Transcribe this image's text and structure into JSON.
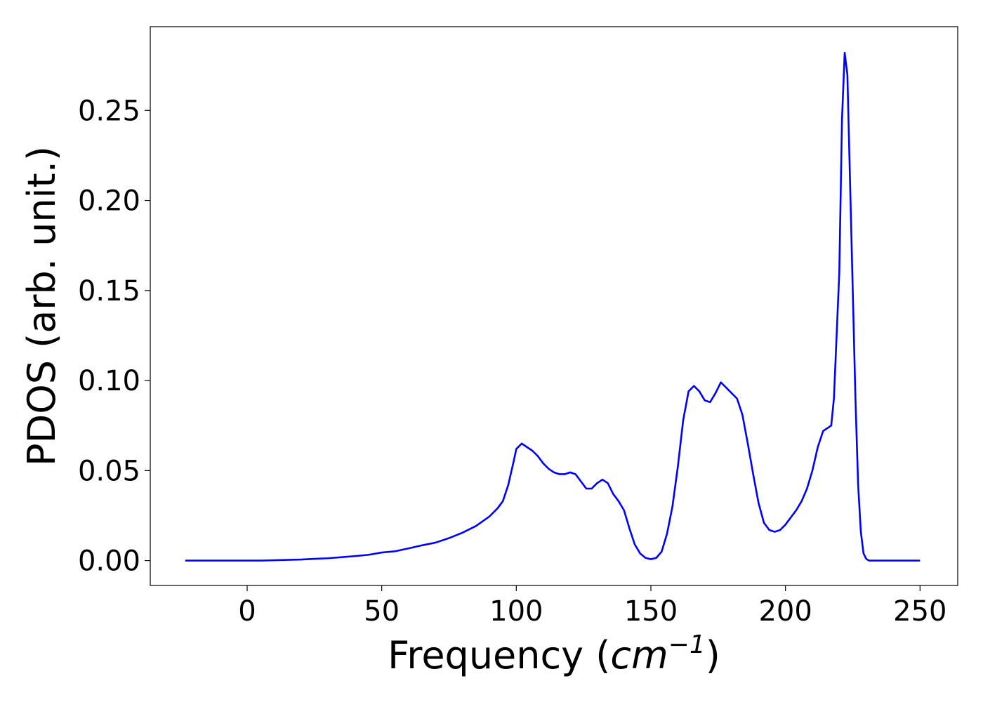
{
  "chart_data": {
    "type": "line",
    "title": "",
    "xlabel_main": "Frequency (",
    "xlabel_unit": "cm",
    "xlabel_exp": "−1",
    "xlabel_close": ")",
    "ylabel": "PDOS (arb. unit.)",
    "xlim": [
      -36,
      264
    ],
    "ylim": [
      -0.0138,
      0.2965
    ],
    "x_ticks": [
      0,
      50,
      100,
      150,
      200,
      250
    ],
    "x_tick_labels": [
      "0",
      "50",
      "100",
      "150",
      "200",
      "250"
    ],
    "y_ticks": [
      0.0,
      0.05,
      0.1,
      0.15,
      0.2,
      0.25
    ],
    "y_tick_labels": [
      "0.00",
      "0.05",
      "0.10",
      "0.15",
      "0.20",
      "0.25"
    ],
    "grid": false,
    "legend": "none",
    "series": [
      {
        "color": "#0000ff",
        "x": [
          -23,
          0,
          5,
          10,
          20,
          25,
          30,
          40,
          45,
          50,
          55,
          60,
          65,
          70,
          75,
          80,
          85,
          90,
          93,
          95,
          97,
          99,
          100,
          102,
          104,
          106,
          108,
          110,
          112,
          114,
          116,
          118,
          120,
          122,
          124,
          126,
          128,
          130,
          132,
          134,
          136,
          138,
          140,
          142,
          144,
          146,
          148,
          150,
          152,
          154,
          156,
          158,
          160,
          162,
          164,
          166,
          168,
          170,
          172,
          174,
          176,
          178,
          180,
          182,
          184,
          186,
          188,
          190,
          192,
          194,
          196,
          198,
          200,
          202,
          204,
          206,
          208,
          210,
          212,
          214,
          216,
          217,
          218,
          220,
          221,
          222,
          223,
          224,
          225,
          226,
          227,
          228,
          229,
          230,
          231,
          232,
          233,
          235,
          240,
          250
        ],
        "y": [
          0.0,
          0.0,
          0.0,
          0.0002,
          0.0006,
          0.001,
          0.0013,
          0.0025,
          0.0032,
          0.0045,
          0.0052,
          0.0068,
          0.0085,
          0.01,
          0.0125,
          0.0155,
          0.0192,
          0.0245,
          0.029,
          0.033,
          0.042,
          0.055,
          0.062,
          0.065,
          0.063,
          0.061,
          0.058,
          0.054,
          0.051,
          0.049,
          0.048,
          0.048,
          0.049,
          0.048,
          0.044,
          0.04,
          0.04,
          0.043,
          0.045,
          0.043,
          0.037,
          0.033,
          0.028,
          0.018,
          0.009,
          0.004,
          0.0015,
          0.0008,
          0.0015,
          0.005,
          0.015,
          0.03,
          0.052,
          0.078,
          0.094,
          0.097,
          0.094,
          0.089,
          0.088,
          0.093,
          0.099,
          0.096,
          0.093,
          0.09,
          0.081,
          0.065,
          0.048,
          0.032,
          0.021,
          0.017,
          0.016,
          0.017,
          0.02,
          0.024,
          0.028,
          0.033,
          0.04,
          0.05,
          0.063,
          0.072,
          0.074,
          0.075,
          0.09,
          0.16,
          0.245,
          0.282,
          0.27,
          0.21,
          0.15,
          0.09,
          0.042,
          0.016,
          0.004,
          0.001,
          0.0,
          0.0,
          0.0,
          0.0,
          0.0,
          0.0
        ]
      }
    ]
  }
}
